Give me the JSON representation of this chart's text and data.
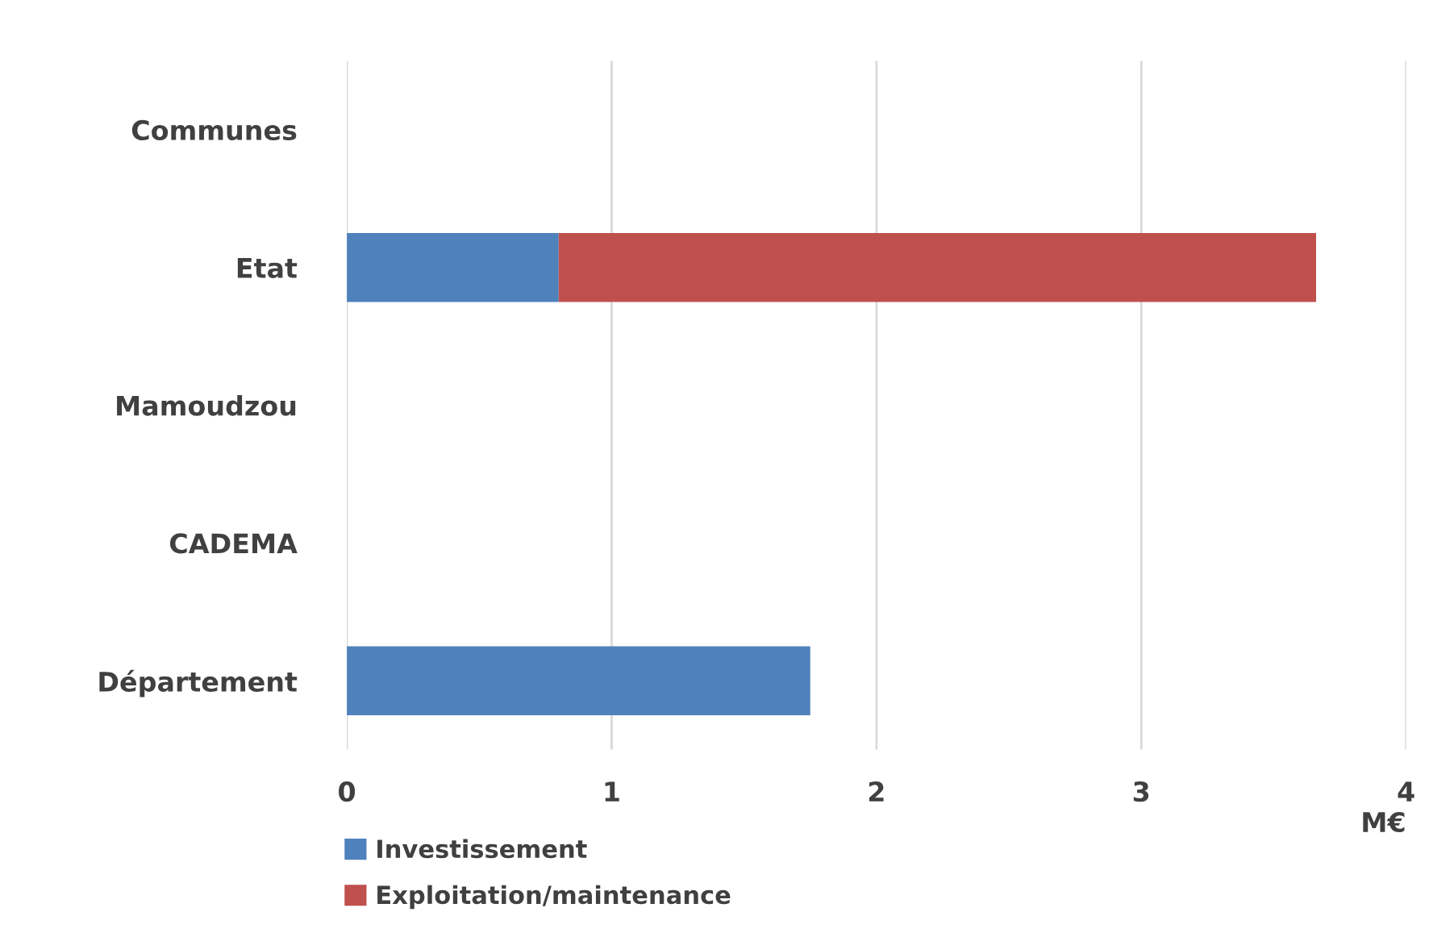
{
  "chart_data": {
    "type": "bar",
    "orientation": "horizontal",
    "stacked": true,
    "xlabel": "M€",
    "categories": [
      "Communes",
      "Etat",
      "Mamoudzou",
      "CADEMA",
      "Département"
    ],
    "series": [
      {
        "name": "Investissement",
        "color": "#4f81bd",
        "values": [
          0,
          0.8,
          0,
          0,
          1.75
        ]
      },
      {
        "name": "Exploitation/maintenance",
        "color": "#c0504d",
        "values": [
          0,
          2.86,
          0,
          0,
          0
        ]
      }
    ],
    "xlim": [
      0,
      4
    ],
    "xticks": [
      0,
      1,
      2,
      3,
      4
    ],
    "grid": "x",
    "legend": "bottom"
  }
}
